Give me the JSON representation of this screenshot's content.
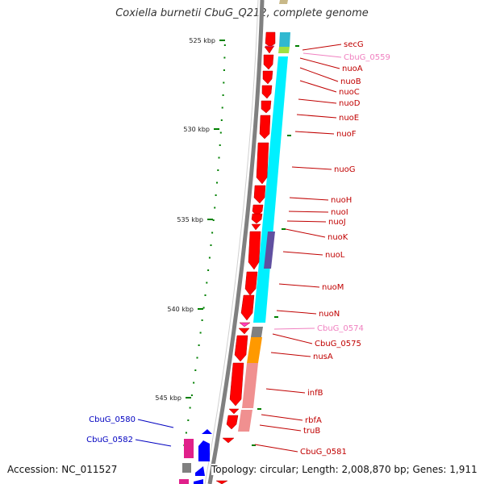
{
  "title": "Coxiella burnetii CbuG_Q212, complete genome",
  "footer": {
    "accession": "Accession: NC_011527",
    "topology": "Topology: circular; Length: 2,008,870 bp; Genes: 1,911"
  },
  "colors": {
    "cds": "#ff0000",
    "pseudo": "#f080c0",
    "blue_gene": "#0000ff",
    "backbone": "#808080",
    "gc_tick": "#008000",
    "cog_cyan": "#00e0f0",
    "cog_orange": "#ff9900",
    "cog_pink": "#f09090",
    "cog_violet": "#6050a0"
  },
  "ticks": [
    {
      "label": "525 kbp",
      "kbp": 525
    },
    {
      "label": "530 kbp",
      "kbp": 530
    },
    {
      "label": "535 kbp",
      "kbp": 535
    },
    {
      "label": "540 kbp",
      "kbp": 540
    },
    {
      "label": "545 kbp",
      "kbp": 545
    }
  ],
  "genes": [
    {
      "name": "secG",
      "color": "#c00000",
      "kind": "cds"
    },
    {
      "name": "CbuG_0559",
      "color": "#f080c0",
      "kind": "pseudo"
    },
    {
      "name": "nuoA",
      "color": "#c00000",
      "kind": "cds"
    },
    {
      "name": "nuoB",
      "color": "#c00000",
      "kind": "cds"
    },
    {
      "name": "nuoC",
      "color": "#c00000",
      "kind": "cds"
    },
    {
      "name": "nuoD",
      "color": "#c00000",
      "kind": "cds"
    },
    {
      "name": "nuoE",
      "color": "#c00000",
      "kind": "cds"
    },
    {
      "name": "nuoF",
      "color": "#c00000",
      "kind": "cds"
    },
    {
      "name": "nuoG",
      "color": "#c00000",
      "kind": "cds"
    },
    {
      "name": "nuoH",
      "color": "#c00000",
      "kind": "cds"
    },
    {
      "name": "nuoI",
      "color": "#c00000",
      "kind": "cds"
    },
    {
      "name": "nuoJ",
      "color": "#c00000",
      "kind": "cds"
    },
    {
      "name": "nuoK",
      "color": "#c00000",
      "kind": "cds"
    },
    {
      "name": "nuoL",
      "color": "#c00000",
      "kind": "cds"
    },
    {
      "name": "nuoM",
      "color": "#c00000",
      "kind": "cds"
    },
    {
      "name": "nuoN",
      "color": "#c00000",
      "kind": "cds"
    },
    {
      "name": "CbuG_0574",
      "color": "#f080c0",
      "kind": "pseudo"
    },
    {
      "name": "CbuG_0575",
      "color": "#c00000",
      "kind": "cds"
    },
    {
      "name": "nusA",
      "color": "#c00000",
      "kind": "cds"
    },
    {
      "name": "infB",
      "color": "#c00000",
      "kind": "cds"
    },
    {
      "name": "rbfA",
      "color": "#c00000",
      "kind": "cds"
    },
    {
      "name": "truB",
      "color": "#c00000",
      "kind": "cds"
    },
    {
      "name": "CbuG_0581",
      "color": "#c00000",
      "kind": "cds"
    },
    {
      "name": "CbuG_0580",
      "color": "#0000c0",
      "kind": "reverse"
    },
    {
      "name": "CbuG_0582",
      "color": "#0000c0",
      "kind": "reverse"
    }
  ]
}
